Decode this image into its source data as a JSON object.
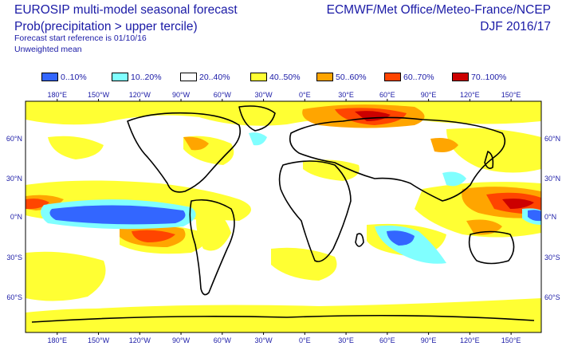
{
  "header": {
    "title": "EUROSIP multi-model seasonal forecast",
    "subtitle": "Prob(precipitation > upper tercile)",
    "start_ref": "Forecast start reference is 01/10/16",
    "mean_type": "Unweighted mean",
    "centres": "ECMWF/Met Office/Meteo-France/NCEP",
    "season": "DJF 2016/17"
  },
  "legend": [
    {
      "label": "0..10%",
      "color": "#3366ff"
    },
    {
      "label": "10..20%",
      "color": "#80ffff"
    },
    {
      "label": "20..40%",
      "color": "#ffffff"
    },
    {
      "label": "40..50%",
      "color": "#ffff33"
    },
    {
      "label": "50..60%",
      "color": "#ffa500"
    },
    {
      "label": "60..70%",
      "color": "#ff4500"
    },
    {
      "label": "70..100%",
      "color": "#cc0000"
    }
  ],
  "axes": {
    "lon_labels": [
      "180°E",
      "150°W",
      "120°W",
      "90°W",
      "60°W",
      "30°W",
      "0°E",
      "30°E",
      "60°E",
      "90°E",
      "120°E",
      "150°E"
    ],
    "lat_labels_left": [
      "60°N",
      "30°N",
      "0°N",
      "30°S",
      "60°S"
    ],
    "lat_labels_right": [
      "60°N",
      "30°N",
      "0°N",
      "30°S",
      "60°S"
    ]
  }
}
